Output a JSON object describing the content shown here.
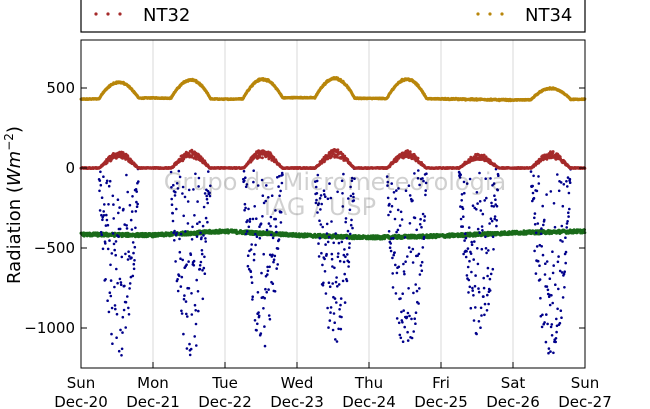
{
  "chart_data": {
    "type": "scatter",
    "ylabel_prefix": "Radiation (",
    "ylabel_math": "Wm",
    "ylabel_exp": "−2",
    "ylabel_suffix": ")",
    "ylim": [
      -1250,
      800
    ],
    "y_ticks": [
      500,
      0,
      -500,
      -1000
    ],
    "y_tick_labels": [
      "500",
      "0",
      "−500",
      "−1000"
    ],
    "xlim": [
      0,
      7
    ],
    "x_ticks": [
      0,
      1,
      2,
      3,
      4,
      5,
      6,
      7
    ],
    "x_tick_day": [
      "Sun",
      "Mon",
      "Tue",
      "Wed",
      "Thu",
      "Fri",
      "Sat",
      "Sun"
    ],
    "x_tick_date": [
      "Dec-20",
      "Dec-21",
      "Dec-22",
      "Dec-23",
      "Dec-24",
      "Dec-25",
      "Dec-26",
      "Dec-27"
    ],
    "grid_x": true,
    "legend": {
      "placement": "top",
      "entries": [
        {
          "name": "NT32",
          "color": "#a52a2a"
        },
        {
          "name": "NT34",
          "color": "#b8860b"
        }
      ]
    },
    "watermark": [
      "Grupo de Micrometeorologia",
      "IAG / USP"
    ],
    "series": [
      {
        "name": "NT34",
        "color": "#b8860b",
        "day_base": [
          430,
          438,
          430,
          440,
          435,
          432,
          425,
          430
        ],
        "day_peak": [
          540,
          555,
          560,
          565,
          560,
          0,
          500,
          545
        ],
        "note_skip": ""
      },
      {
        "name": "NT32",
        "color": "#a52a2a",
        "day_peak": [
          100,
          105,
          110,
          110,
          105,
          85,
          100
        ]
      },
      {
        "color": "#1a6b1a",
        "day_level": [
          -415,
          -420,
          -395,
          -420,
          -435,
          -425,
          -405,
          -395
        ]
      },
      {
        "color": "#00008b",
        "day_min": [
          -1190,
          -1180,
          -1150,
          -1110,
          -1200,
          -1050,
          -1200
        ]
      }
    ]
  }
}
